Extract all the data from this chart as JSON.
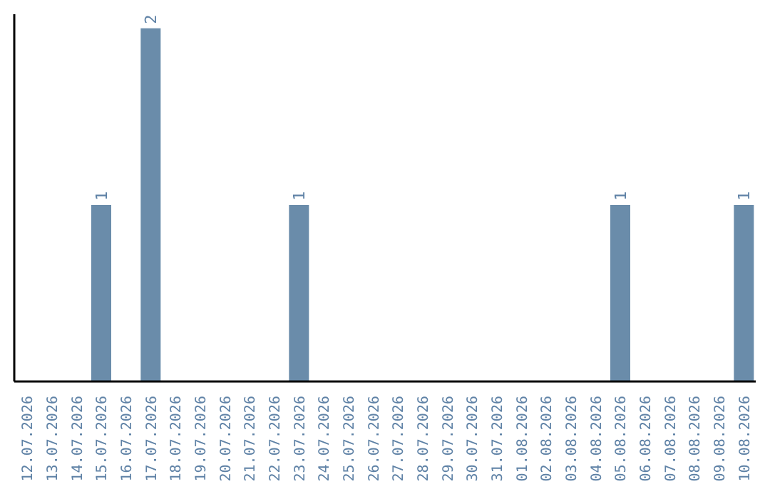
{
  "chart_data": {
    "type": "bar",
    "categories": [
      "12.07.2026",
      "13.07.2026",
      "14.07.2026",
      "15.07.2026",
      "16.07.2026",
      "17.07.2026",
      "18.07.2026",
      "19.07.2026",
      "20.07.2026",
      "21.07.2026",
      "22.07.2026",
      "23.07.2026",
      "24.07.2026",
      "25.07.2026",
      "26.07.2026",
      "27.07.2026",
      "28.07.2026",
      "29.07.2026",
      "30.07.2026",
      "31.07.2026",
      "01.08.2026",
      "02.08.2026",
      "03.08.2026",
      "04.08.2026",
      "05.08.2026",
      "06.08.2026",
      "07.08.2026",
      "08.08.2026",
      "09.08.2026",
      "10.08.2026"
    ],
    "values": [
      0,
      0,
      0,
      1,
      0,
      2,
      0,
      0,
      0,
      0,
      0,
      1,
      0,
      0,
      0,
      0,
      0,
      0,
      0,
      0,
      0,
      0,
      0,
      0,
      1,
      0,
      0,
      0,
      0,
      1
    ],
    "value_labels": [
      null,
      null,
      null,
      "1",
      null,
      "2",
      null,
      null,
      null,
      null,
      null,
      "1",
      null,
      null,
      null,
      null,
      null,
      null,
      null,
      null,
      null,
      null,
      null,
      null,
      "1",
      null,
      null,
      null,
      null,
      "1"
    ],
    "color": "#6a8caa"
  }
}
